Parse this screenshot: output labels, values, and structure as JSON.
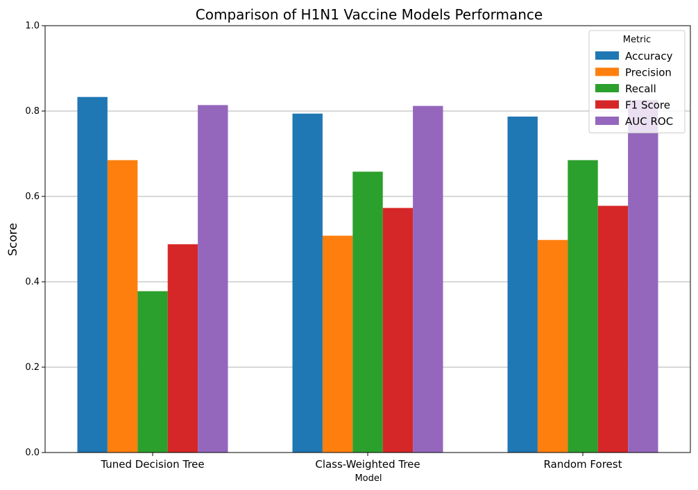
{
  "chart_data": {
    "type": "bar",
    "title": "Comparison of H1N1 Vaccine Models Performance",
    "xlabel": "Model",
    "ylabel": "Score",
    "ylim": [
      0,
      1.0
    ],
    "yticks": [
      "0.0",
      "0.2",
      "0.4",
      "0.6",
      "0.8",
      "1.0"
    ],
    "ytick_values": [
      0,
      0.2,
      0.4,
      0.6,
      0.8,
      1.0
    ],
    "grid": "horizontal",
    "categories": [
      "Tuned Decision Tree",
      "Class-Weighted Tree",
      "Random Forest"
    ],
    "legend": {
      "title": "Metric",
      "position": "top-right"
    },
    "series": [
      {
        "name": "Accuracy",
        "color": "#1f77b4",
        "values": [
          0.833,
          0.794,
          0.787
        ]
      },
      {
        "name": "Precision",
        "color": "#ff7f0e",
        "values": [
          0.685,
          0.508,
          0.498
        ]
      },
      {
        "name": "Recall",
        "color": "#2ca02c",
        "values": [
          0.378,
          0.658,
          0.685
        ]
      },
      {
        "name": "F1 Score",
        "color": "#d62728",
        "values": [
          0.488,
          0.573,
          0.578
        ]
      },
      {
        "name": "AUC ROC",
        "color": "#9467bd",
        "values": [
          0.814,
          0.812,
          0.826
        ]
      }
    ]
  }
}
